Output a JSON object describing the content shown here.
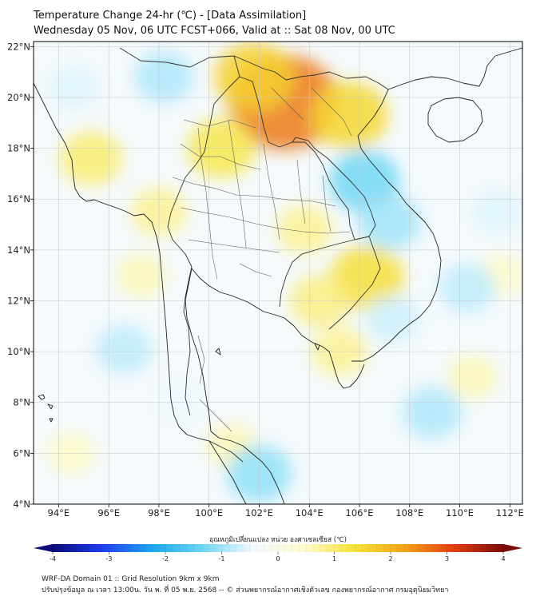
{
  "title": {
    "line1": "Temperature Change 24-hr (℃) - [Data Assimilation]",
    "line2": "Wednesday 05 Nov, 06 UTC FCST+066, Valid at :: Sat 08 Nov, 00 UTC"
  },
  "map": {
    "lon_range": [
      93,
      112.5
    ],
    "lat_range": [
      4,
      22.2
    ],
    "lon_ticks": [
      94,
      96,
      98,
      100,
      102,
      104,
      106,
      108,
      110,
      112
    ],
    "lat_ticks": [
      4,
      6,
      8,
      10,
      12,
      14,
      16,
      18,
      20,
      22
    ],
    "lon_labels": [
      "94°E",
      "96°E",
      "98°E",
      "100°E",
      "102°E",
      "104°E",
      "106°E",
      "108°E",
      "110°E",
      "112°E"
    ],
    "lat_labels": [
      "4°N",
      "6°N",
      "8°N",
      "10°N",
      "12°N",
      "14°N",
      "16°N",
      "18°N",
      "20°N",
      "22°N"
    ]
  },
  "field_anomalies": [
    {
      "lon": 103.0,
      "lat": 19.8,
      "value": 2.6
    },
    {
      "lon": 101.8,
      "lat": 20.8,
      "value": 1.6
    },
    {
      "lon": 105.6,
      "lat": 19.3,
      "value": 1.5
    },
    {
      "lon": 100.5,
      "lat": 18.0,
      "value": 1.2
    },
    {
      "lon": 95.3,
      "lat": 17.6,
      "value": 1.0
    },
    {
      "lon": 106.3,
      "lat": 12.9,
      "value": 1.4
    },
    {
      "lon": 104.4,
      "lat": 12.0,
      "value": 0.9
    },
    {
      "lon": 103.8,
      "lat": 14.8,
      "value": 0.8
    },
    {
      "lon": 98.0,
      "lat": 15.5,
      "value": 0.8
    },
    {
      "lon": 105.2,
      "lat": 10.0,
      "value": 0.8
    },
    {
      "lon": 97.3,
      "lat": 13.0,
      "value": 0.6
    },
    {
      "lon": 111.7,
      "lat": 13.0,
      "value": 0.5
    },
    {
      "lon": 110.5,
      "lat": 9.0,
      "value": 0.6
    },
    {
      "lon": 100.9,
      "lat": 6.3,
      "value": 0.6
    },
    {
      "lon": 94.5,
      "lat": 6.0,
      "value": 0.5
    },
    {
      "lon": 106.2,
      "lat": 16.7,
      "value": -1.3
    },
    {
      "lon": 107.2,
      "lat": 15.1,
      "value": -1.0
    },
    {
      "lon": 98.2,
      "lat": 20.8,
      "value": -0.9
    },
    {
      "lon": 94.6,
      "lat": 20.4,
      "value": -0.6
    },
    {
      "lon": 102.0,
      "lat": 5.2,
      "value": -1.1
    },
    {
      "lon": 96.6,
      "lat": 10.1,
      "value": -0.8
    },
    {
      "lon": 108.9,
      "lat": 7.6,
      "value": -0.9
    },
    {
      "lon": 110.3,
      "lat": 12.5,
      "value": -0.8
    },
    {
      "lon": 107.3,
      "lat": 11.3,
      "value": -0.7
    },
    {
      "lon": 98.8,
      "lat": 8.1,
      "value": -0.5
    },
    {
      "lon": 111.5,
      "lat": 15.5,
      "value": -0.6
    }
  ],
  "colorbar": {
    "title": "อุณหภูมิเปลี่ยนแปลง หน่วย องศาเซลเซียส (℃)",
    "min": -4,
    "max": 4,
    "tick_values": [
      -4,
      -3,
      -2,
      -1,
      0,
      1,
      2,
      3,
      4
    ],
    "tick_labels": [
      "-4",
      "-3",
      "-2",
      "-1",
      "0",
      "1",
      "2",
      "3",
      "4"
    ],
    "stops": [
      "#0b0b7a",
      "#1e3ff0",
      "#1ea8f0",
      "#6ed6f5",
      "#f4fbff",
      "#fffbd0",
      "#f6e43a",
      "#f5a51a",
      "#e3400e",
      "#7a0b0b"
    ]
  },
  "colors": {
    "coastline": "#202020",
    "border": "#303030",
    "grid": "#c8c8c8"
  },
  "footer": {
    "line1": "WRF-DA Domain 01 :: Grid Resolution 9km x 9km",
    "line2": "ปรับปรุงข้อมูล ณ เวลา 13:00น. วัน พ. ที่ 05 พ.ย. 2568 -- © ส่วนพยากรณ์อากาศเชิงตัวเลข กองพยากรณ์อากาศ กรมอุตุนิยมวิทยา"
  }
}
